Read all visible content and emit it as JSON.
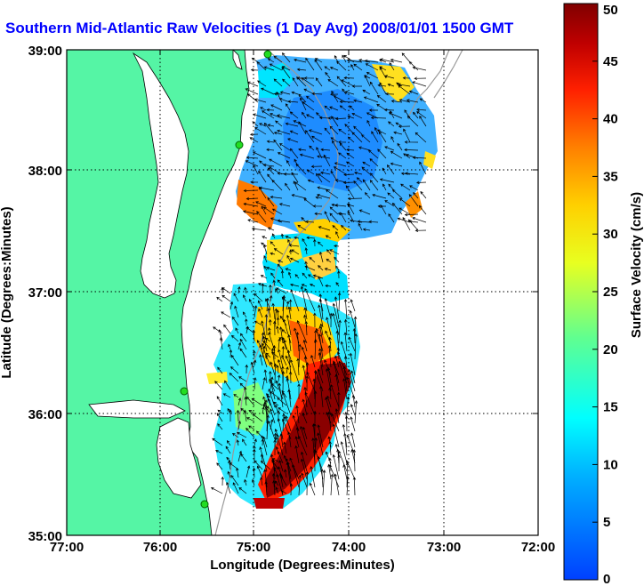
{
  "title": "Southern Mid-Atlantic Raw Velocities (1 Day Avg) 2008/01/01 1500 GMT",
  "axes": {
    "xlabel": "Longitude (Degrees:Minutes)",
    "ylabel": "Latitude (Degrees:Minutes)",
    "xticks": [
      "77:00",
      "76:00",
      "75:00",
      "74:00",
      "73:00",
      "72:00"
    ],
    "yticks": [
      "39:00",
      "38:00",
      "37:00",
      "36:00",
      "35:00"
    ]
  },
  "colorbar": {
    "label": "Surface Velocity (cm/s)",
    "ticks": [
      "50",
      "45",
      "40",
      "35",
      "30",
      "25",
      "20",
      "15",
      "10",
      "5",
      "0"
    ],
    "range": [
      0,
      50
    ]
  },
  "colors": {
    "land": "#55f5a5",
    "title": "#0000ff",
    "station": "#22dd22"
  }
}
